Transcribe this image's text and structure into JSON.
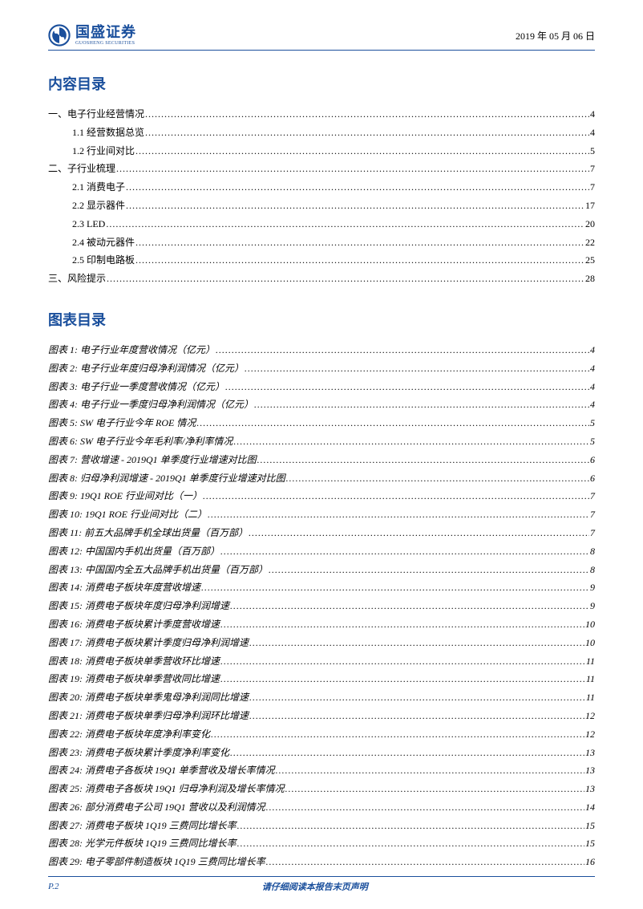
{
  "header": {
    "logo_cn": "国盛证券",
    "logo_en": "GUOSHENG SECURITIES",
    "date": "2019 年 05 月 06 日"
  },
  "colors": {
    "brand": "#1a4f9c",
    "text": "#000000",
    "bg": "#ffffff"
  },
  "typography": {
    "title_fontsize": 18,
    "row_fontsize": 12,
    "footer_fontsize": 11
  },
  "sections": {
    "content_title": "内容目录",
    "figure_title": "图表目录"
  },
  "content_toc": [
    {
      "label": "一、电子行业经营情况",
      "page": "4",
      "indent": 0
    },
    {
      "label": "1.1 经营数据总览",
      "page": "4",
      "indent": 1
    },
    {
      "label": "1.2 行业间对比",
      "page": "5",
      "indent": 1
    },
    {
      "label": "二、子行业梳理",
      "page": "7",
      "indent": 0
    },
    {
      "label": "2.1 消费电子",
      "page": "7",
      "indent": 1
    },
    {
      "label": "2.2 显示器件",
      "page": "17",
      "indent": 1
    },
    {
      "label": "2.3 LED",
      "page": "20",
      "indent": 1
    },
    {
      "label": "2.4 被动元器件",
      "page": "22",
      "indent": 1
    },
    {
      "label": "2.5 印制电路板",
      "page": "25",
      "indent": 1
    },
    {
      "label": "三、风险提示",
      "page": "28",
      "indent": 0
    }
  ],
  "figure_toc": [
    {
      "label": "图表 1:  电子行业年度营收情况（亿元）",
      "page": "4"
    },
    {
      "label": "图表 2:  电子行业年度归母净利润情况（亿元）",
      "page": "4"
    },
    {
      "label": "图表 3:  电子行业一季度营收情况（亿元）",
      "page": "4"
    },
    {
      "label": "图表 4:  电子行业一季度归母净利润情况（亿元）",
      "page": "4"
    },
    {
      "label": "图表 5:  SW 电子行业今年 ROE 情况",
      "page": "5"
    },
    {
      "label": "图表 6:  SW 电子行业今年毛利率/净利率情况",
      "page": "5"
    },
    {
      "label": "图表 7:  营收增速  - 2019Q1 单季度行业增速对比图",
      "page": "6"
    },
    {
      "label": "图表 8:  归母净利润增速  - 2019Q1 单季度行业增速对比图",
      "page": "6"
    },
    {
      "label": "图表 9:  19Q1 ROE 行业间对比（一）",
      "page": "7"
    },
    {
      "label": "图表 10:  19Q1 ROE 行业间对比（二）",
      "page": "7"
    },
    {
      "label": "图表 11:  前五大品牌手机全球出货量（百万部）",
      "page": "7"
    },
    {
      "label": "图表 12:  中国国内手机出货量（百万部）",
      "page": "8"
    },
    {
      "label": "图表 13:  中国国内全五大品牌手机出货量（百万部）",
      "page": "8"
    },
    {
      "label": "图表 14:  消费电子板块年度营收增速",
      "page": "9"
    },
    {
      "label": "图表 15:  消费电子板块年度归母净利润增速",
      "page": "9"
    },
    {
      "label": "图表 16:  消费电子板块累计季度营收增速",
      "page": "10"
    },
    {
      "label": "图表 17:  消费电子板块累计季度归母净利润增速",
      "page": "10"
    },
    {
      "label": "图表 18:  消费电子板块单季营收环比增速",
      "page": "11"
    },
    {
      "label": "图表 19:  消费电子板块单季营收同比增速",
      "page": "11"
    },
    {
      "label": "图表 20:  消费电子板块单季鬼母净利润同比增速",
      "page": "11"
    },
    {
      "label": "图表 21:  消费电子板块单季归母净利润环比增速",
      "page": "12"
    },
    {
      "label": "图表 22:  消费电子板块年度净利率变化",
      "page": "12"
    },
    {
      "label": "图表 23:  消费电子板块累计季度净利率变化",
      "page": "13"
    },
    {
      "label": "图表 24:  消费电子各板块 19Q1 单季营收及增长率情况",
      "page": "13"
    },
    {
      "label": "图表 25:  消费电子各板块 19Q1 归母净利润及增长率情况",
      "page": "13"
    },
    {
      "label": "图表 26:  部分消费电子公司 19Q1 营收以及利润情况",
      "page": "14"
    },
    {
      "label": "图表 27:  消费电子板块 1Q19 三费同比增长率",
      "page": "15"
    },
    {
      "label": "图表 28:  光学元件板块 1Q19 三费同比增长率",
      "page": "15"
    },
    {
      "label": "图表 29:  电子零部件制造板块 1Q19  三费同比增长率",
      "page": "16"
    }
  ],
  "footer": {
    "page_num": "P.2",
    "text": "请仔细阅读本报告末页声明"
  }
}
